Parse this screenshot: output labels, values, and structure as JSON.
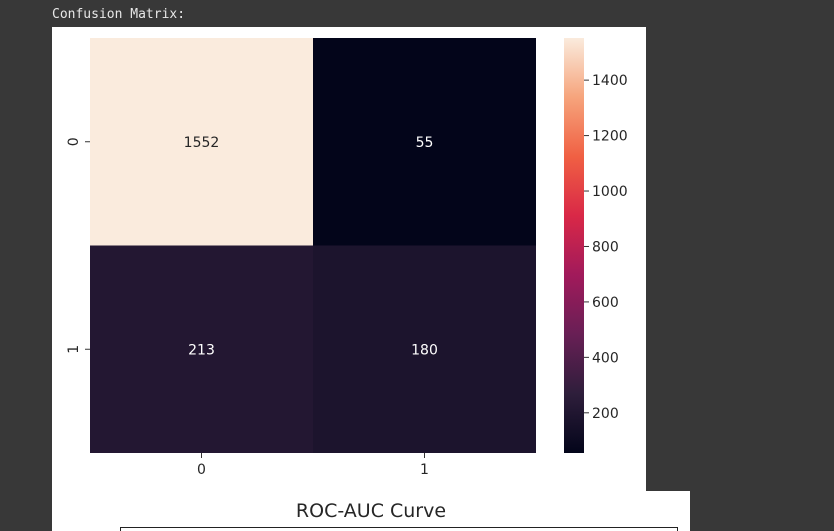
{
  "output_label": "Confusion Matrix:",
  "chart_data": [
    {
      "type": "heatmap",
      "rows": [
        "0",
        "1"
      ],
      "columns": [
        "0",
        "1"
      ],
      "values": [
        [
          1552,
          55
        ],
        [
          213,
          180
        ]
      ],
      "colorbar": {
        "min": 55,
        "max": 1552,
        "ticks": [
          200,
          400,
          600,
          800,
          1000,
          1200,
          1400
        ],
        "colormap": "rocket",
        "colors": [
          "#03051a",
          "#2e1e3b",
          "#681f55",
          "#a11a5b",
          "#d92847",
          "#f06043",
          "#f6a47c",
          "#faebdd"
        ]
      },
      "title": "",
      "xlabel": "",
      "ylabel": ""
    },
    {
      "type": "line",
      "title": "ROC-AUC Curve"
    }
  ]
}
